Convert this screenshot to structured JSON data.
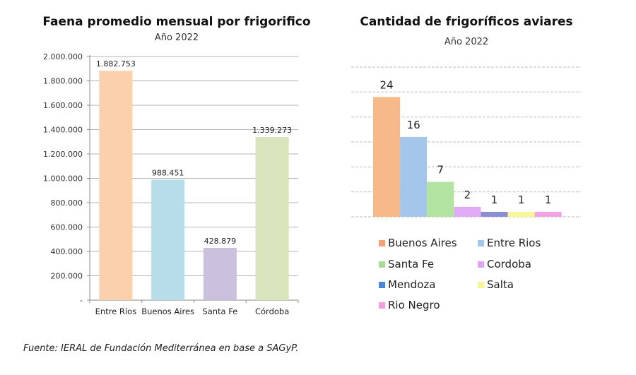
{
  "source": "Fuente: IERAL de Fundación Mediterránea en base a SAGyP.",
  "chart_data": [
    {
      "type": "bar",
      "title": "Faena promedio mensual por frigorifico",
      "subtitle": "Año 2022",
      "xlabel": "",
      "ylabel": "",
      "categories": [
        "Entre Ríos",
        "Buenos Aires",
        "Santa Fe",
        "Córdoba"
      ],
      "values": [
        1882753,
        988451,
        428879,
        1339273
      ],
      "data_labels": [
        "1.882.753",
        "988.451",
        "428.879",
        "1.339.273"
      ],
      "colors": [
        "#fbd0ac",
        "#b7dde8",
        "#ccc1dd",
        "#d8e4bc"
      ],
      "ylim": [
        0,
        2000000
      ],
      "yticks": [
        0,
        200000,
        400000,
        600000,
        800000,
        1000000,
        1200000,
        1400000,
        1600000,
        1800000,
        2000000
      ],
      "ytick_labels": [
        "-",
        "200.000",
        "400.000",
        "600.000",
        "800.000",
        "1.000.000",
        "1.200.000",
        "1.400.000",
        "1.600.000",
        "1.800.000",
        "2.000.000"
      ],
      "grid": true,
      "legend": "none"
    },
    {
      "type": "bar",
      "title": "Cantidad de frigoríficos aviares",
      "subtitle": "Año 2022",
      "xlabel": "",
      "ylabel": "",
      "categories": [
        "Buenos Aires",
        "Entre Rios",
        "Santa Fe",
        "Cordoba",
        "Mendoza",
        "Salta",
        "Rio Negro"
      ],
      "values": [
        24,
        16,
        7,
        2,
        1,
        1,
        1
      ],
      "data_labels": [
        "24",
        "16",
        "7",
        "2",
        "1",
        "1",
        "1"
      ],
      "colors": [
        "#f8b98a",
        "#a4c6ea",
        "#b2e3a0",
        "#e1aaf6",
        "#8c8fcf",
        "#f7f79a",
        "#f2a3e3"
      ],
      "legend_colors": [
        "#f4a27a",
        "#a4c6ea",
        "#a8dc98",
        "#dfa5f4",
        "#4a86d4",
        "#f5f59a",
        "#f0a0e0"
      ],
      "ylim": [
        0,
        30
      ],
      "grid": true,
      "grid_style": "dashed",
      "axis_labels_visible": false,
      "legend": "bottom"
    }
  ]
}
